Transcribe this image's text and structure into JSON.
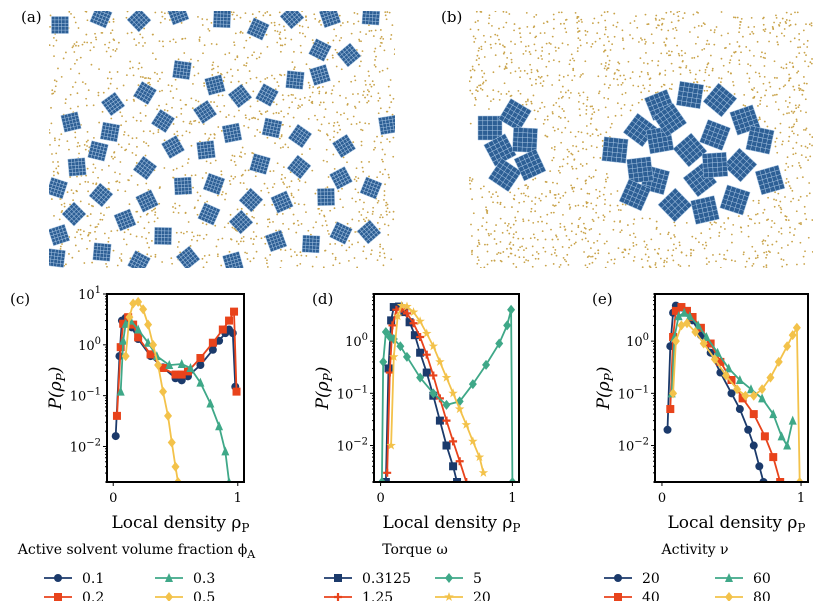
{
  "snapshots": [
    {
      "label": "(a)",
      "description_name": "dispersed-snapshot"
    },
    {
      "label": "(b)",
      "description_name": "clustered-snapshot"
    }
  ],
  "colors": {
    "navy": "#1b3a6b",
    "red": "#e8431b",
    "teal": "#3fa888",
    "yellow": "#f3c24a",
    "gold": "#c9a34a",
    "square": "#2d5f95"
  },
  "chart_data": [
    {
      "type": "line",
      "panel": "(c)",
      "xlabel": "Local density ρ",
      "xlabel_sub": "P",
      "ylabel": "P(ρ",
      "ylabel_sub": "P",
      "ylabel_tail": ")",
      "yscale": "log",
      "xlim": [
        -0.05,
        1.05
      ],
      "ylim": [
        0.002,
        10
      ],
      "xticks": [
        {
          "v": 0,
          "t": "0"
        },
        {
          "v": 1,
          "t": "1"
        }
      ],
      "yticks": [
        {
          "v": 10,
          "base": "10",
          "exp": "1"
        },
        {
          "v": 1,
          "base": "10",
          "exp": "0"
        },
        {
          "v": 0.1,
          "base": "10",
          "exp": "−1"
        },
        {
          "v": 0.01,
          "base": "10",
          "exp": "−2"
        }
      ],
      "legend_title": "Active solvent volume fraction ϕ",
      "legend_title_sub": "A",
      "series": [
        {
          "name": "0.1",
          "color": "#1b3a6b",
          "marker": "circle",
          "x": [
            0.02,
            0.05,
            0.07,
            0.1,
            0.15,
            0.2,
            0.3,
            0.4,
            0.5,
            0.55,
            0.6,
            0.7,
            0.8,
            0.85,
            0.9,
            0.93,
            0.96,
            0.98
          ],
          "y": [
            0.016,
            0.6,
            3.0,
            3.4,
            2.2,
            1.3,
            0.6,
            0.36,
            0.22,
            0.2,
            0.24,
            0.4,
            0.8,
            1.2,
            1.7,
            2.0,
            1.7,
            0.15
          ]
        },
        {
          "name": "0.2",
          "color": "#e8431b",
          "marker": "square",
          "x": [
            0.03,
            0.06,
            0.08,
            0.12,
            0.16,
            0.2,
            0.3,
            0.4,
            0.5,
            0.55,
            0.6,
            0.7,
            0.8,
            0.88,
            0.93,
            0.97,
            0.99
          ],
          "y": [
            0.04,
            0.9,
            2.6,
            3.5,
            2.5,
            1.4,
            0.65,
            0.35,
            0.26,
            0.26,
            0.3,
            0.55,
            1.1,
            2.0,
            3.0,
            4.5,
            0.12
          ]
        },
        {
          "name": "0.3",
          "color": "#3fa888",
          "marker": "triangle",
          "x": [
            0.06,
            0.08,
            0.1,
            0.14,
            0.2,
            0.28,
            0.35,
            0.45,
            0.55,
            0.62,
            0.7,
            0.78,
            0.85,
            0.9,
            0.93
          ],
          "y": [
            0.12,
            1.2,
            2.6,
            3.0,
            2.0,
            1.1,
            0.6,
            0.4,
            0.42,
            0.35,
            0.18,
            0.07,
            0.025,
            0.008,
            0.002
          ]
        },
        {
          "name": "0.5",
          "color": "#f3c24a",
          "marker": "diamond",
          "x": [
            0.1,
            0.13,
            0.16,
            0.2,
            0.24,
            0.28,
            0.32,
            0.36,
            0.4,
            0.44,
            0.47,
            0.5,
            0.52
          ],
          "y": [
            0.6,
            3.5,
            6.5,
            7.0,
            5.0,
            2.5,
            1.0,
            0.4,
            0.12,
            0.04,
            0.012,
            0.004,
            0.002
          ]
        }
      ]
    },
    {
      "type": "line",
      "panel": "(d)",
      "xlabel": "Local density ρ",
      "xlabel_sub": "P",
      "ylabel": "P(ρ",
      "ylabel_sub": "P",
      "ylabel_tail": ")",
      "yscale": "log",
      "xlim": [
        -0.05,
        1.05
      ],
      "ylim": [
        0.002,
        8
      ],
      "xticks": [
        {
          "v": 0,
          "t": "0"
        },
        {
          "v": 1,
          "t": "1"
        }
      ],
      "yticks": [
        {
          "v": 1,
          "base": "10",
          "exp": "0"
        },
        {
          "v": 0.1,
          "base": "10",
          "exp": "−1"
        },
        {
          "v": 0.01,
          "base": "10",
          "exp": "−2"
        }
      ],
      "legend_title": "Torque  ω",
      "legend_title_sub": "",
      "series": [
        {
          "name": "0.3125",
          "color": "#1b3a6b",
          "marker": "square",
          "x": [
            0.04,
            0.06,
            0.08,
            0.1,
            0.14,
            0.18,
            0.22,
            0.26,
            0.3,
            0.35,
            0.4,
            0.45,
            0.5,
            0.55,
            0.58
          ],
          "y": [
            0.002,
            0.3,
            2.5,
            4.5,
            4.6,
            3.6,
            2.3,
            1.3,
            0.6,
            0.25,
            0.09,
            0.03,
            0.01,
            0.004,
            0.002
          ]
        },
        {
          "name": "1.25",
          "color": "#e8431b",
          "marker": "cross",
          "x": [
            0.05,
            0.07,
            0.09,
            0.12,
            0.16,
            0.2,
            0.25,
            0.3,
            0.35,
            0.4,
            0.45,
            0.5,
            0.55,
            0.6,
            0.65
          ],
          "y": [
            0.003,
            0.25,
            2.0,
            4.0,
            4.2,
            3.4,
            2.2,
            1.2,
            0.55,
            0.22,
            0.08,
            0.03,
            0.012,
            0.005,
            0.002
          ]
        },
        {
          "name": "5",
          "color": "#3fa888",
          "marker": "diamond",
          "x": [
            0.01,
            0.02,
            0.04,
            0.07,
            0.1,
            0.15,
            0.2,
            0.3,
            0.4,
            0.5,
            0.6,
            0.7,
            0.8,
            0.9,
            0.96,
            0.99,
            1.0
          ],
          "y": [
            0.002,
            0.4,
            1.5,
            1.2,
            1.1,
            0.8,
            0.5,
            0.2,
            0.1,
            0.06,
            0.07,
            0.15,
            0.35,
            0.9,
            2.0,
            4.0,
            0.002
          ]
        },
        {
          "name": "20",
          "color": "#f3c24a",
          "marker": "star",
          "x": [
            0.08,
            0.1,
            0.13,
            0.16,
            0.2,
            0.25,
            0.3,
            0.35,
            0.4,
            0.45,
            0.5,
            0.55,
            0.6,
            0.65,
            0.7,
            0.75,
            0.78
          ],
          "y": [
            0.01,
            0.5,
            3.0,
            4.8,
            4.6,
            3.6,
            2.4,
            1.4,
            0.8,
            0.4,
            0.2,
            0.1,
            0.05,
            0.025,
            0.012,
            0.006,
            0.003
          ]
        }
      ]
    },
    {
      "type": "line",
      "panel": "(e)",
      "xlabel": "Local density ρ",
      "xlabel_sub": "P",
      "ylabel": "P(ρ",
      "ylabel_sub": "P",
      "ylabel_tail": ")",
      "yscale": "log",
      "xlim": [
        -0.05,
        1.05
      ],
      "ylim": [
        0.002,
        8
      ],
      "xticks": [
        {
          "v": 0,
          "t": "0"
        },
        {
          "v": 1,
          "t": "1"
        }
      ],
      "yticks": [
        {
          "v": 1,
          "base": "10",
          "exp": "0"
        },
        {
          "v": 0.1,
          "base": "10",
          "exp": "−1"
        },
        {
          "v": 0.01,
          "base": "10",
          "exp": "−2"
        }
      ],
      "legend_title": "Activity  ν",
      "legend_title_sub": "",
      "series": [
        {
          "name": "20",
          "color": "#1b3a6b",
          "marker": "circle",
          "x": [
            0.04,
            0.06,
            0.08,
            0.1,
            0.14,
            0.18,
            0.22,
            0.28,
            0.35,
            0.42,
            0.5,
            0.56,
            0.62,
            0.66,
            0.7,
            0.73
          ],
          "y": [
            0.02,
            0.8,
            3.5,
            4.8,
            4.4,
            3.5,
            2.5,
            1.3,
            0.6,
            0.25,
            0.1,
            0.05,
            0.02,
            0.01,
            0.004,
            0.002
          ]
        },
        {
          "name": "40",
          "color": "#e8431b",
          "marker": "square",
          "x": [
            0.06,
            0.08,
            0.1,
            0.14,
            0.18,
            0.22,
            0.28,
            0.35,
            0.42,
            0.5,
            0.58,
            0.66,
            0.74,
            0.8,
            0.85
          ],
          "y": [
            0.05,
            1.2,
            3.8,
            4.5,
            3.8,
            2.9,
            1.8,
            0.9,
            0.4,
            0.18,
            0.08,
            0.04,
            0.015,
            0.006,
            0.002
          ]
        },
        {
          "name": "60",
          "color": "#3fa888",
          "marker": "triangle",
          "x": [
            0.07,
            0.09,
            0.12,
            0.16,
            0.2,
            0.26,
            0.32,
            0.4,
            0.48,
            0.56,
            0.64,
            0.72,
            0.8,
            0.86,
            0.9,
            0.94
          ],
          "y": [
            0.1,
            1.2,
            3.0,
            3.5,
            3.0,
            2.0,
            1.2,
            0.6,
            0.3,
            0.18,
            0.12,
            0.08,
            0.04,
            0.015,
            0.01,
            0.03
          ]
        },
        {
          "name": "80",
          "color": "#f3c24a",
          "marker": "diamond",
          "x": [
            0.08,
            0.1,
            0.14,
            0.18,
            0.24,
            0.3,
            0.38,
            0.46,
            0.54,
            0.6,
            0.66,
            0.72,
            0.78,
            0.84,
            0.9,
            0.94,
            0.97,
            0.99
          ],
          "y": [
            0.1,
            1.0,
            2.0,
            2.2,
            1.5,
            0.9,
            0.45,
            0.22,
            0.12,
            0.09,
            0.09,
            0.12,
            0.2,
            0.4,
            0.8,
            1.3,
            1.8,
            0.002
          ]
        }
      ]
    }
  ]
}
